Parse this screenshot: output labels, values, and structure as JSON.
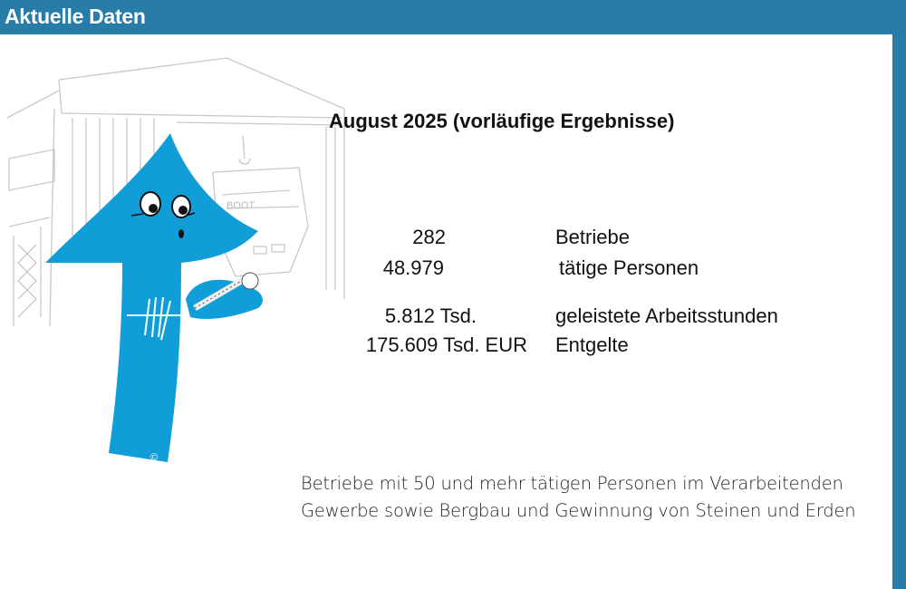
{
  "header": {
    "title": "Aktuelle Daten"
  },
  "colors": {
    "header": "#277ca8",
    "arrow": "#119ed8"
  },
  "illustration": {
    "icon": "arrow-mascot-with-screw-icon",
    "copyright": "©"
  },
  "main": {
    "title": "August 2025 (vorläufige Ergebnisse)",
    "stats": [
      {
        "value": "282",
        "label": "Betriebe"
      },
      {
        "value": "48.979",
        "label": "tätige Personen"
      },
      {
        "value": "5.812 Tsd.",
        "label": "geleistete Arbeitsstunden"
      },
      {
        "value": "175.609 Tsd. EUR",
        "label": "Entgelte"
      }
    ],
    "note_line1": "Betriebe mit 50 und mehr tätigen Personen im Verarbeitenden",
    "note_line2": "Gewerbe sowie Bergbau und Gewinnung von Steinen und Erden"
  }
}
